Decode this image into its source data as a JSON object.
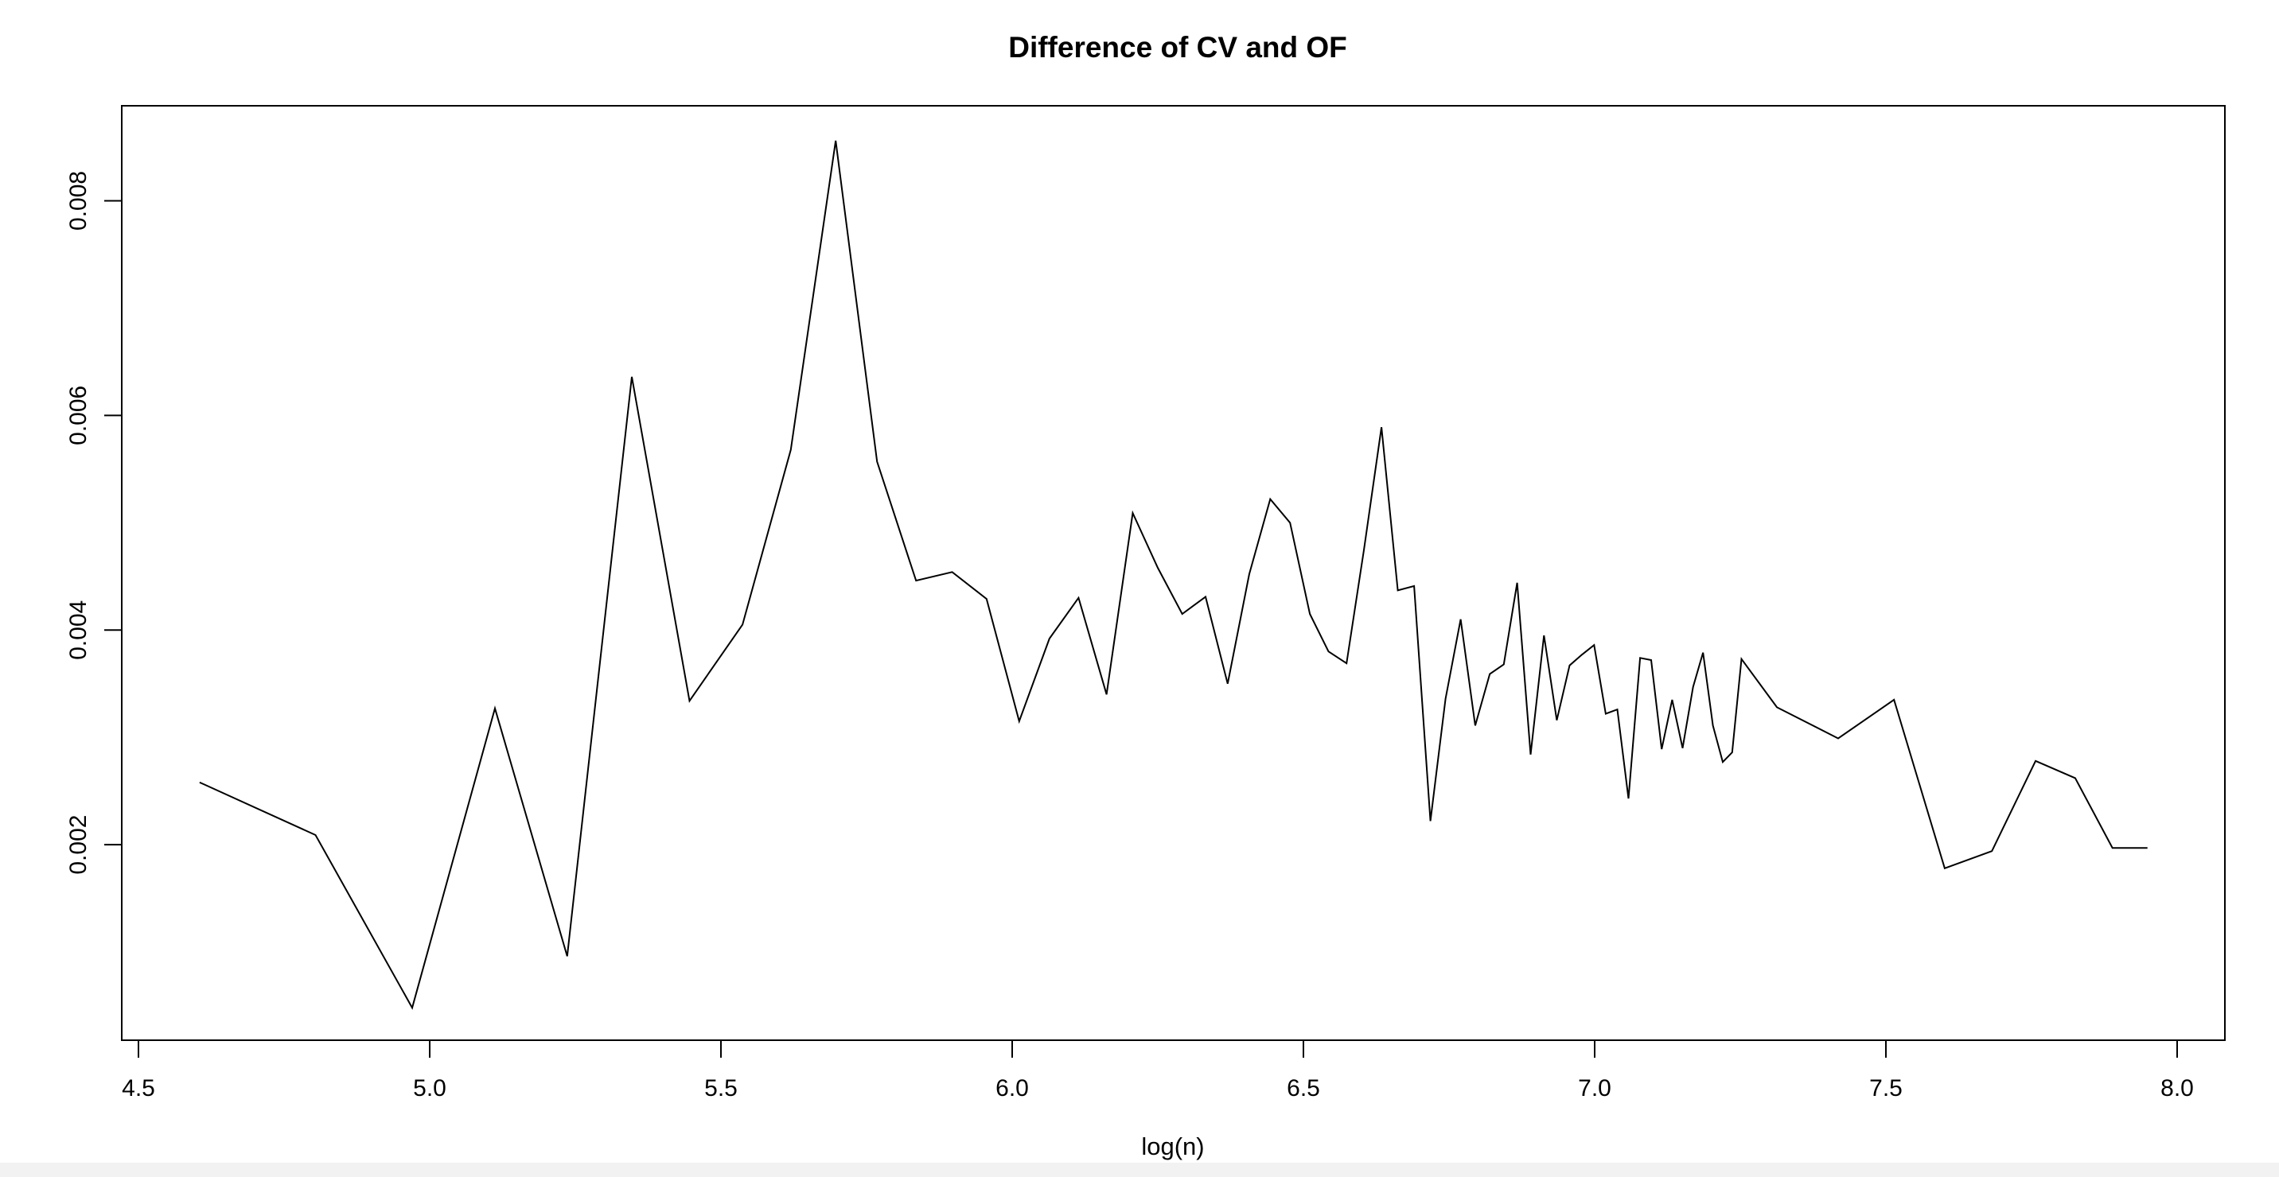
{
  "chart_data": {
    "type": "line",
    "title": "Difference of CV and OF",
    "xlabel": "log(n)",
    "ylabel": "",
    "xlim": [
      4.5,
      8.0
    ],
    "ylim": [
      0.0002,
      0.0089
    ],
    "x_ticks": [
      "4.5",
      "5.0",
      "5.5",
      "6.0",
      "6.5",
      "7.0",
      "7.5",
      "8.0"
    ],
    "y_ticks": [
      "0.002",
      "0.004",
      "0.006",
      "0.008"
    ],
    "grid": false,
    "legend": "none",
    "line_color": "#000000",
    "series": [
      {
        "x": [
          4.605,
          4.804,
          4.97,
          5.112,
          5.236,
          5.347,
          5.446,
          5.537,
          5.62,
          5.697,
          5.768,
          5.835,
          5.897,
          5.956,
          6.012,
          6.064,
          6.114,
          6.162,
          6.207,
          6.25,
          6.292,
          6.332,
          6.37,
          6.407,
          6.443,
          6.477,
          6.511,
          6.543,
          6.574,
          6.604,
          6.634,
          6.662,
          6.69,
          6.718,
          6.744,
          6.77,
          6.795,
          6.82,
          6.844,
          6.867,
          6.89,
          6.913,
          6.935,
          6.957,
          6.978,
          6.999,
          7.019,
          7.039,
          7.058,
          7.078,
          7.097,
          7.115,
          7.133,
          7.151,
          7.169,
          7.186,
          7.203,
          7.22,
          7.236,
          7.252,
          7.313,
          7.418,
          7.514,
          7.601,
          7.682,
          7.757,
          7.825,
          7.889,
          7.949
        ],
        "y": [
          0.00258,
          0.00209,
          0.00048,
          0.00327,
          0.00096,
          0.00636,
          0.00334,
          0.00405,
          0.00568,
          0.00856,
          0.00557,
          0.00446,
          0.00454,
          0.00429,
          0.00315,
          0.00392,
          0.0043,
          0.0034,
          0.00509,
          0.00458,
          0.00415,
          0.00431,
          0.0035,
          0.00452,
          0.00522,
          0.005,
          0.00415,
          0.0038,
          0.00369,
          0.00475,
          0.00589,
          0.00437,
          0.00441,
          0.00222,
          0.00336,
          0.0041,
          0.00311,
          0.00359,
          0.00368,
          0.00444,
          0.00284,
          0.00395,
          0.00316,
          0.00367,
          0.00377,
          0.00386,
          0.00322,
          0.00326,
          0.00243,
          0.00374,
          0.00372,
          0.00289,
          0.00335,
          0.0029,
          0.00347,
          0.00379,
          0.00311,
          0.00277,
          0.00286,
          0.00373,
          0.00328,
          0.00299,
          0.00335,
          0.00178,
          0.00194,
          0.00278,
          0.00262,
          0.00197,
          0.00197
        ]
      }
    ]
  }
}
